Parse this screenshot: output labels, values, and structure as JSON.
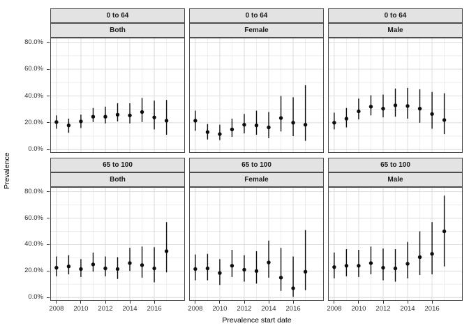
{
  "chart_data": {
    "type": "scatter",
    "subtype": "pointrange-facet-grid",
    "title": "",
    "xlabel": "Prevalence start date",
    "ylabel": "Prevalence",
    "years": [
      2008,
      2009,
      2010,
      2011,
      2012,
      2013,
      2014,
      2015,
      2016,
      2017
    ],
    "x_tick_labels": [
      "2008",
      "2010",
      "2012",
      "2014",
      "2016"
    ],
    "x_tick_years": [
      2008,
      2010,
      2012,
      2014,
      2016
    ],
    "y_tick_labels": [
      "80.0%",
      "60.0%",
      "40.0%",
      "20.0%",
      "0.0%"
    ],
    "y_tick_values": [
      80,
      60,
      40,
      20,
      0
    ],
    "y_minor_values": [
      70,
      50,
      30,
      10
    ],
    "ylim": [
      -2.5,
      83.5
    ],
    "grid": true,
    "legend": "none",
    "facet_rows": [
      "0 to 64",
      "65 to 100"
    ],
    "facet_cols": [
      "Both",
      "Female",
      "Male"
    ],
    "units": "percent",
    "panels": [
      {
        "age": "0 to 64",
        "sex": "Both",
        "estimate": [
          20.5,
          18,
          21,
          24.5,
          24.5,
          26,
          25.5,
          28,
          24,
          21.5
        ],
        "lower": [
          15.5,
          12.5,
          16,
          20.5,
          19.5,
          21,
          19.5,
          20.5,
          15,
          11
        ],
        "upper": [
          25.5,
          23,
          26,
          31,
          32,
          34.5,
          34.5,
          38.5,
          36.5,
          37
        ]
      },
      {
        "age": "0 to 64",
        "sex": "Female",
        "estimate": [
          21.5,
          13,
          11.5,
          15,
          18.5,
          18,
          16.5,
          23.5,
          20,
          18.5
        ],
        "lower": [
          14,
          7.5,
          7,
          9.5,
          12,
          11,
          8.5,
          13.5,
          10,
          6.5
        ],
        "upper": [
          29,
          19,
          18.5,
          23,
          26.5,
          29,
          28,
          40,
          39,
          48
        ]
      },
      {
        "age": "0 to 64",
        "sex": "Male",
        "estimate": [
          20,
          23,
          28.5,
          32,
          30.5,
          33,
          32.5,
          30.5,
          26.5,
          22
        ],
        "lower": [
          15,
          16.5,
          22.5,
          25.5,
          24,
          24.5,
          23,
          20,
          15.5,
          11.5
        ],
        "upper": [
          27.5,
          31,
          38,
          40.5,
          41,
          45.5,
          46,
          45,
          43,
          42
        ]
      },
      {
        "age": "65 to 100",
        "sex": "Both",
        "estimate": [
          22.5,
          23.5,
          21.5,
          25,
          22,
          21.5,
          26,
          24.5,
          22,
          35
        ],
        "lower": [
          16,
          17.5,
          15.5,
          19.5,
          16,
          14,
          20,
          15,
          11.5,
          19
        ],
        "upper": [
          31,
          32,
          29,
          34,
          31,
          30.5,
          37.5,
          38.5,
          38,
          57
        ]
      },
      {
        "age": "65 to 100",
        "sex": "Female",
        "estimate": [
          21.5,
          22,
          18.5,
          24,
          21,
          20,
          26.5,
          15,
          7,
          19.5
        ],
        "lower": [
          13,
          13,
          9.5,
          15.5,
          12,
          10.5,
          15,
          5,
          0.5,
          5.5
        ],
        "upper": [
          32.5,
          33,
          29,
          36,
          32,
          35,
          43,
          37.5,
          31,
          51
        ]
      },
      {
        "age": "65 to 100",
        "sex": "Male",
        "estimate": [
          23,
          24,
          24,
          26,
          22.5,
          22,
          25.5,
          30.5,
          33,
          50
        ],
        "lower": [
          14.5,
          16,
          15.5,
          17.5,
          13,
          12,
          14.5,
          17,
          17.5,
          23.5
        ],
        "upper": [
          34,
          36.5,
          36,
          38.5,
          37,
          36.5,
          42,
          50,
          57,
          77
        ]
      }
    ]
  },
  "colors": {
    "point": "#0d0d0d",
    "errorbar": "#0d0d0d",
    "panel_border": "#4d4d4d",
    "strip_background": "#e3e3e3",
    "grid_major": "#dcdcdc",
    "grid_minor": "#ededed",
    "tick_text": "#303030",
    "axis_tick": "#333333",
    "background": "#ffffff"
  }
}
